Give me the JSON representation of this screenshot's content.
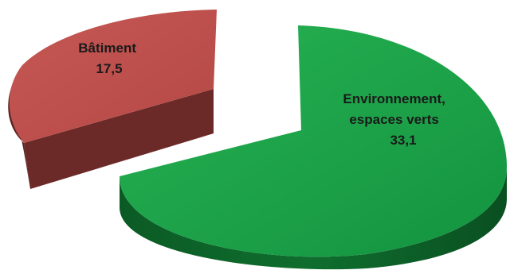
{
  "chart_data": {
    "type": "pie",
    "style": "3d-exploded",
    "title": "",
    "slices": [
      {
        "label_lines": [
          "Bâtiment"
        ],
        "value_text": "17,5",
        "value": 17.5,
        "color": "#c0504d",
        "side_color": "#6b2a27"
      },
      {
        "label_lines": [
          "Environnement,",
          "espaces verts"
        ],
        "value_text": "33,1",
        "value": 33.1,
        "color": "#1ea04a",
        "side_color": "#0d5a27"
      }
    ]
  }
}
